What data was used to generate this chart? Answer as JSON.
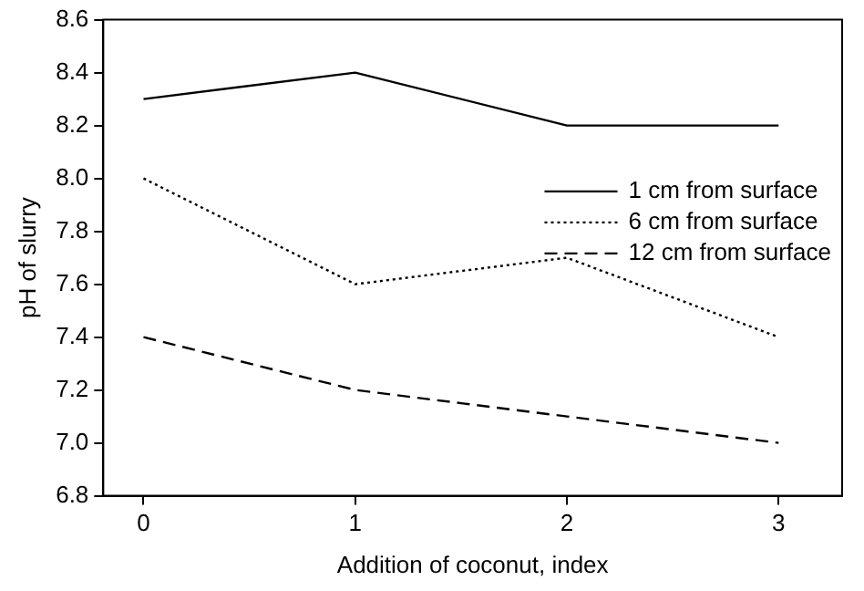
{
  "chart_data": {
    "type": "line",
    "xlabel": "Addition of coconut, index",
    "ylabel": "pH of slurry",
    "x": [
      0,
      1,
      2,
      3
    ],
    "xlim": [
      -0.19,
      3.3
    ],
    "xticks": [
      0,
      1,
      2,
      3
    ],
    "ylim": [
      6.8,
      8.6
    ],
    "yticks": [
      {
        "value": 6.8,
        "label": "6.8"
      },
      {
        "value": 7.0,
        "label": "7.0"
      },
      {
        "value": 7.2,
        "label": "7.2"
      },
      {
        "value": 7.4,
        "label": "7.4"
      },
      {
        "value": 7.6,
        "label": "7.6"
      },
      {
        "value": 7.8,
        "label": "7.8"
      },
      {
        "value": 8.0,
        "label": "8.0"
      },
      {
        "value": 8.2,
        "label": "8.2"
      },
      {
        "value": 8.4,
        "label": "8.4"
      },
      {
        "value": 8.6,
        "label": "8.6"
      }
    ],
    "grid": false,
    "legend": "right",
    "marker": "none",
    "series": [
      {
        "name": "1 cm from surface",
        "color": "#000000",
        "line_style": "solid",
        "values": [
          8.3,
          8.4,
          8.2,
          8.2
        ]
      },
      {
        "name": "6 cm from surface",
        "color": "#000000",
        "line_style": "dotted",
        "values": [
          8.0,
          7.6,
          7.7,
          7.4
        ]
      },
      {
        "name": "12 cm from surface",
        "color": "#000000",
        "line_style": "dashed",
        "values": [
          7.4,
          7.2,
          7.1,
          7.0
        ]
      }
    ]
  }
}
